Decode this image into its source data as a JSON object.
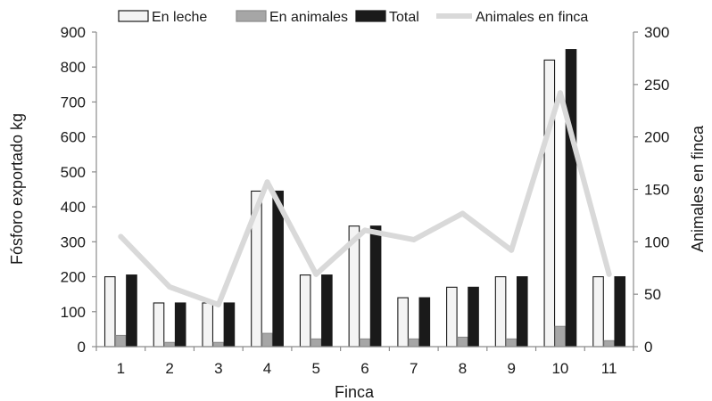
{
  "chart_data": {
    "type": "bar",
    "title": "",
    "xlabel": "Finca",
    "ylabel": "Fósforo exportado kg",
    "y2label": "Animales en finca",
    "categories": [
      "1",
      "2",
      "3",
      "4",
      "5",
      "6",
      "7",
      "8",
      "9",
      "10",
      "11"
    ],
    "ylim": [
      0,
      900
    ],
    "y_ticks": [
      "0",
      "100",
      "200",
      "300",
      "400",
      "500",
      "600",
      "700",
      "800",
      "900"
    ],
    "y2lim": [
      0,
      300
    ],
    "y2_ticks": [
      "0",
      "50",
      "100",
      "150",
      "200",
      "250",
      "300"
    ],
    "grid": false,
    "legend_position": "top",
    "series": [
      {
        "name": "En leche",
        "kind": "bar",
        "axis": "left",
        "color": "#f4f4f4",
        "stroke": "#1a1a1a",
        "values": [
          200,
          125,
          125,
          445,
          205,
          345,
          140,
          170,
          200,
          820,
          200
        ]
      },
      {
        "name": "En animales",
        "kind": "bar",
        "axis": "left",
        "color": "#a6a6a6",
        "stroke": "#8a8a8a",
        "values": [
          32,
          12,
          12,
          38,
          22,
          22,
          22,
          27,
          22,
          58,
          17
        ]
      },
      {
        "name": "Total",
        "kind": "bar",
        "axis": "left",
        "color": "#1a1a1a",
        "stroke": "#1a1a1a",
        "values": [
          205,
          125,
          125,
          445,
          205,
          345,
          140,
          170,
          200,
          850,
          200
        ]
      },
      {
        "name": "Animales en finca",
        "kind": "line",
        "axis": "right",
        "color": "#d9d9d9",
        "values": [
          105,
          57,
          40,
          157,
          69,
          111,
          102,
          127,
          92,
          242,
          69
        ]
      }
    ]
  }
}
